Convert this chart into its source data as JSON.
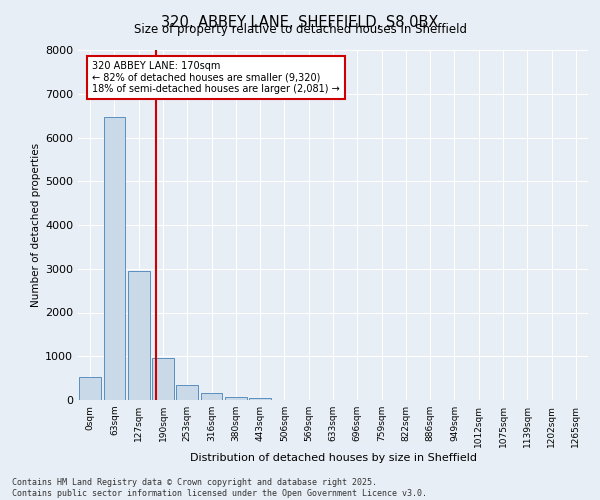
{
  "title_line1": "320, ABBEY LANE, SHEFFIELD, S8 0BX",
  "title_line2": "Size of property relative to detached houses in Sheffield",
  "xlabel": "Distribution of detached houses by size in Sheffield",
  "ylabel": "Number of detached properties",
  "footnote_line1": "Contains HM Land Registry data © Crown copyright and database right 2025.",
  "footnote_line2": "Contains public sector information licensed under the Open Government Licence v3.0.",
  "bar_labels": [
    "0sqm",
    "63sqm",
    "127sqm",
    "190sqm",
    "253sqm",
    "316sqm",
    "380sqm",
    "443sqm",
    "506sqm",
    "569sqm",
    "633sqm",
    "696sqm",
    "759sqm",
    "822sqm",
    "886sqm",
    "949sqm",
    "1012sqm",
    "1075sqm",
    "1139sqm",
    "1202sqm",
    "1265sqm"
  ],
  "bar_values": [
    530,
    6480,
    2960,
    970,
    340,
    150,
    80,
    40,
    0,
    0,
    0,
    0,
    0,
    0,
    0,
    0,
    0,
    0,
    0,
    0,
    0
  ],
  "bar_color": "#c9d9e8",
  "bar_edge_color": "#5a8fc0",
  "background_color": "#e8eef5",
  "grid_color": "#ffffff",
  "ylim": [
    0,
    8000
  ],
  "yticks": [
    0,
    1000,
    2000,
    3000,
    4000,
    5000,
    6000,
    7000,
    8000
  ],
  "vline_x": 2.72,
  "vline_color": "#cc0000",
  "annotation_text": "320 ABBEY LANE: 170sqm\n← 82% of detached houses are smaller (9,320)\n18% of semi-detached houses are larger (2,081) →",
  "annotation_box_color": "#cc0000",
  "property_size_sqm": 170,
  "bin_width": 63
}
